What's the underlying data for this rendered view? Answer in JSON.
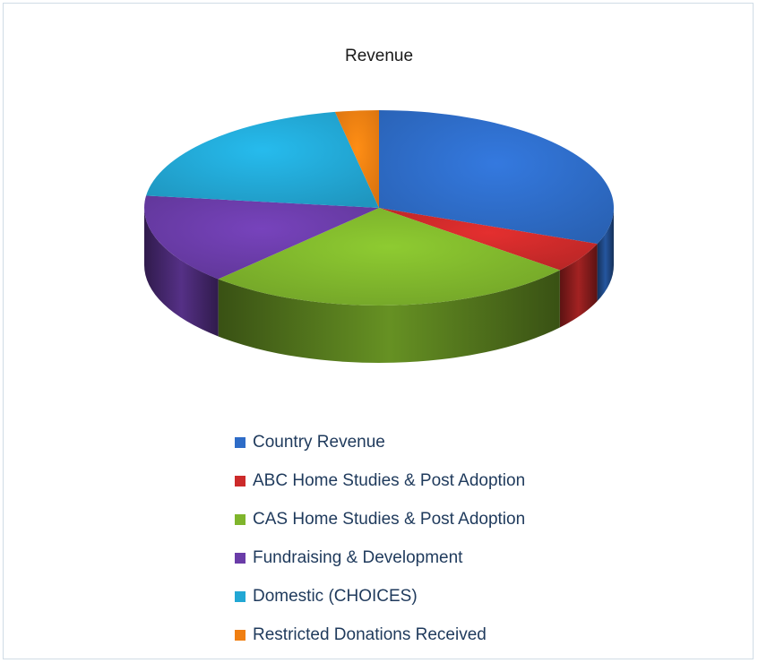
{
  "chart_data": {
    "type": "pie",
    "title": "Revenue",
    "style": "3d",
    "legend_position": "bottom",
    "slices": [
      {
        "label": "Country Revenue",
        "value": 31.0,
        "color": "#2e6cc7"
      },
      {
        "label": "ABC Home Studies & Post Adoption",
        "value": 5.0,
        "color": "#cc2a2a"
      },
      {
        "label": "CAS Home Studies & Post Adoption",
        "value": 26.0,
        "color": "#7fb52c"
      },
      {
        "label": "Fundraising & Development",
        "value": 15.0,
        "color": "#6a3ca8"
      },
      {
        "label": "Domestic (CHOICES)",
        "value": 20.0,
        "color": "#22a7d4"
      },
      {
        "label": "Restricted Donations Received",
        "value": 3.0,
        "color": "#f07f12"
      }
    ]
  }
}
